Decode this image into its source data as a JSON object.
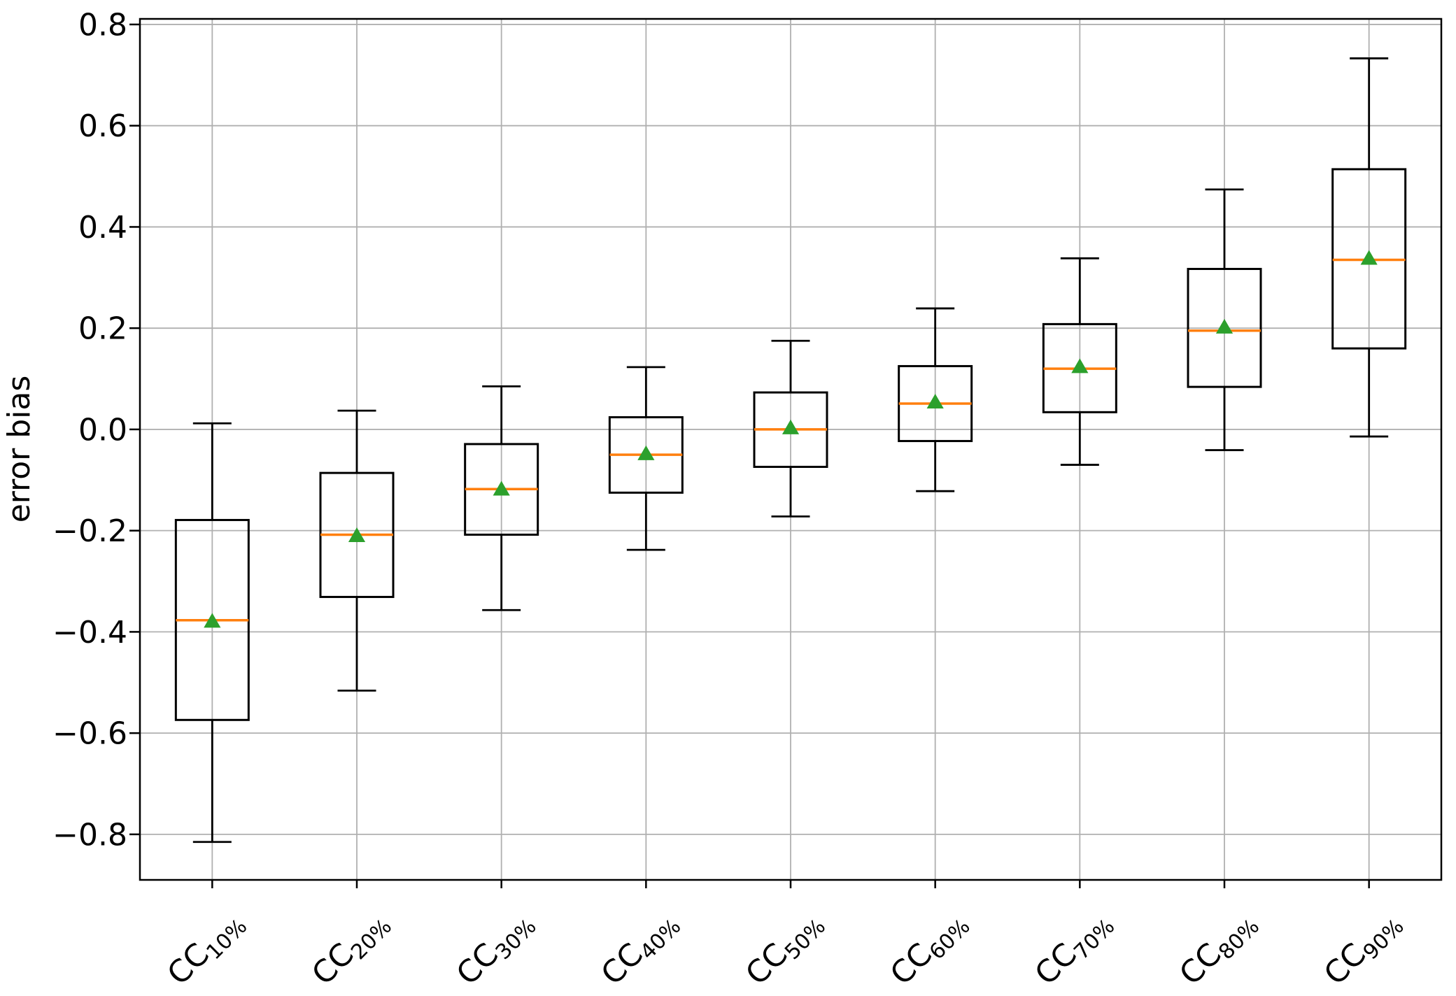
{
  "chart_data": {
    "type": "boxplot",
    "title": "",
    "xlabel": "",
    "ylabel": "error bias",
    "ylim": [
      -0.89,
      0.811
    ],
    "grid": true,
    "legend": "none",
    "mean_marker_shape": "triangle-up",
    "categories": [
      {
        "base": "CC",
        "sub": "10%"
      },
      {
        "base": "CC",
        "sub": "20%"
      },
      {
        "base": "CC",
        "sub": "30%"
      },
      {
        "base": "CC",
        "sub": "40%"
      },
      {
        "base": "CC",
        "sub": "50%"
      },
      {
        "base": "CC",
        "sub": "60%"
      },
      {
        "base": "CC",
        "sub": "70%"
      },
      {
        "base": "CC",
        "sub": "80%"
      },
      {
        "base": "CC",
        "sub": "90%"
      }
    ],
    "yticks": [
      {
        "value": 0.8,
        "label": "0.8"
      },
      {
        "value": 0.6,
        "label": "0.6"
      },
      {
        "value": 0.4,
        "label": "0.4"
      },
      {
        "value": 0.2,
        "label": "0.2"
      },
      {
        "value": 0.0,
        "label": "0.0"
      },
      {
        "value": -0.2,
        "label": "−0.2"
      },
      {
        "value": -0.4,
        "label": "−0.4"
      },
      {
        "value": -0.6,
        "label": "−0.6"
      },
      {
        "value": -0.8,
        "label": "−0.8"
      }
    ],
    "boxes": [
      {
        "whisker_low": -0.815,
        "q1": -0.574,
        "median": -0.377,
        "mean": -0.382,
        "q3": -0.179,
        "whisker_high": 0.012
      },
      {
        "whisker_low": -0.516,
        "q1": -0.331,
        "median": -0.208,
        "mean": -0.213,
        "q3": -0.086,
        "whisker_high": 0.037
      },
      {
        "whisker_low": -0.357,
        "q1": -0.208,
        "median": -0.118,
        "mean": -0.121,
        "q3": -0.029,
        "whisker_high": 0.085
      },
      {
        "whisker_low": -0.238,
        "q1": -0.125,
        "median": -0.05,
        "mean": -0.051,
        "q3": 0.024,
        "whisker_high": 0.123
      },
      {
        "whisker_low": -0.172,
        "q1": -0.074,
        "median": 0.0,
        "mean": 0.0,
        "q3": 0.073,
        "whisker_high": 0.175
      },
      {
        "whisker_low": -0.122,
        "q1": -0.023,
        "median": 0.051,
        "mean": 0.051,
        "q3": 0.125,
        "whisker_high": 0.239
      },
      {
        "whisker_low": -0.07,
        "q1": 0.034,
        "median": 0.12,
        "mean": 0.121,
        "q3": 0.208,
        "whisker_high": 0.338
      },
      {
        "whisker_low": -0.041,
        "q1": 0.084,
        "median": 0.195,
        "mean": 0.199,
        "q3": 0.317,
        "whisker_high": 0.474
      },
      {
        "whisker_low": -0.014,
        "q1": 0.16,
        "median": 0.335,
        "mean": 0.335,
        "q3": 0.514,
        "whisker_high": 0.733
      }
    ],
    "colors": {
      "box": "#000000",
      "whisker": "#000000",
      "median": "#ff7f0e",
      "mean_marker": "#2ca02c",
      "grid": "#b0b0b0",
      "spine": "#000000",
      "background": "#ffffff"
    }
  }
}
